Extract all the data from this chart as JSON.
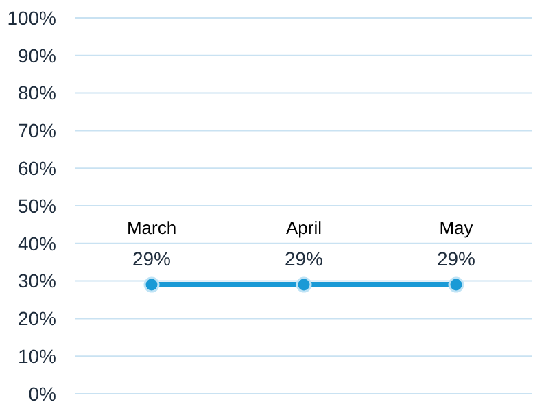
{
  "chart_data": {
    "type": "line",
    "categories": [
      "March",
      "April",
      "May"
    ],
    "series": [
      {
        "color": "#1a9ad6",
        "values": [
          29,
          29,
          29
        ],
        "value_labels": [
          "29%",
          "29%",
          "29%"
        ]
      }
    ],
    "ylim": [
      0,
      100
    ],
    "yticks": [
      {
        "value": 0,
        "label": "0%"
      },
      {
        "value": 10,
        "label": "10%"
      },
      {
        "value": 20,
        "label": "20%"
      },
      {
        "value": 30,
        "label": "30%"
      },
      {
        "value": 40,
        "label": "40%"
      },
      {
        "value": 50,
        "label": "50%"
      },
      {
        "value": 60,
        "label": "60%"
      },
      {
        "value": 70,
        "label": "70%"
      },
      {
        "value": 80,
        "label": "80%"
      },
      {
        "value": 90,
        "label": "90%"
      },
      {
        "value": 100,
        "label": "100%"
      }
    ],
    "grid": "y",
    "marker": "circle",
    "line_style": "solid",
    "tick_labels": "y"
  }
}
